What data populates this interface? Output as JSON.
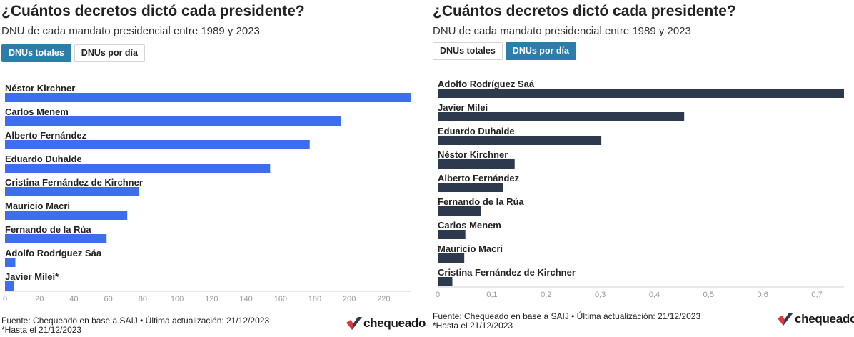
{
  "left": {
    "title": "¿Cuántos decretos dictó cada presidente?",
    "subtitle": "DNU de cada mandato presidencial entre 1989 y 2023",
    "tabs": [
      {
        "label": "DNUs totales",
        "active": true
      },
      {
        "label": "DNUs por día",
        "active": false
      }
    ],
    "footer": {
      "source": "Fuente: Chequeado en base a SAIJ • Última actualización: 21/12/2023",
      "note": "*Hasta el 21/12/2023"
    },
    "brand": "chequeado"
  },
  "right": {
    "title": "¿Cuántos decretos dictó cada presidente?",
    "subtitle": "DNU de cada mandato presidencial entre 1989 y 2023",
    "tabs": [
      {
        "label": "DNUs totales",
        "active": false
      },
      {
        "label": "DNUs por día",
        "active": true
      }
    ],
    "footer": {
      "source": "Fuente: Chequeado en base a SAIJ • Última actualización: 21/12/2023",
      "note": "*Hasta el 21/12/2023"
    },
    "brand": "chequeado"
  },
  "chart_data": [
    {
      "type": "bar",
      "orientation": "horizontal",
      "categories": [
        "Néstor Kirchner",
        "Carlos Menem",
        "Alberto Fernández",
        "Eduardo Duhalde",
        "Cristina Fernández de Kirchner",
        "Mauricio Macri",
        "Fernando de la Rúa",
        "Adolfo Rodríguez Sáa",
        "Javier Milei*"
      ],
      "values": [
        236,
        195,
        177,
        154,
        78,
        71,
        59,
        6,
        5
      ],
      "xlim": [
        0,
        236
      ],
      "ticks": [
        0,
        20,
        40,
        60,
        80,
        100,
        120,
        140,
        160,
        180,
        200,
        220
      ],
      "tick_labels": [
        "0",
        "20",
        "40",
        "60",
        "80",
        "100",
        "120",
        "140",
        "160",
        "180",
        "200",
        "220"
      ],
      "color": "#3d6ef0",
      "grid": false
    },
    {
      "type": "bar",
      "orientation": "horizontal",
      "categories": [
        "Adolfo Rodríguez Saá",
        "Javier Milei",
        "Eduardo Duhalde",
        "Néstor Kirchner",
        "Alberto Fernández",
        "Fernando de la Rúa",
        "Carlos Menem",
        "Mauricio Macri",
        "Cristina Fernández de Kirchner"
      ],
      "values": [
        0.75,
        0.455,
        0.302,
        0.142,
        0.121,
        0.08,
        0.051,
        0.049,
        0.027
      ],
      "xlim": [
        0,
        0.75
      ],
      "ticks": [
        0,
        0.1,
        0.2,
        0.3,
        0.4,
        0.5,
        0.6,
        0.7
      ],
      "tick_labels": [
        "0",
        "0,1",
        "0,2",
        "0,3",
        "0,4",
        "0,5",
        "0,6",
        "0,7"
      ],
      "color": "#2d3a4e",
      "grid": false
    }
  ]
}
